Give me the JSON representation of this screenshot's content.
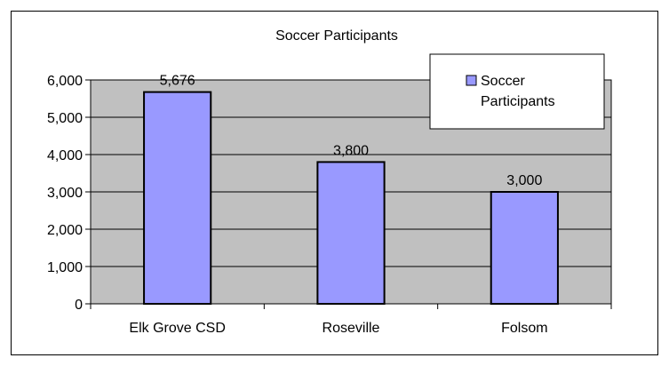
{
  "chart_data": {
    "type": "bar",
    "title": "Soccer Participants",
    "categories": [
      "Elk Grove CSD",
      "Roseville",
      "Folsom"
    ],
    "series": [
      {
        "name": "Soccer Participants",
        "values": [
          5676,
          3800,
          3000
        ]
      }
    ],
    "data_labels": [
      "5,676",
      "3,800",
      "3,000"
    ],
    "y_ticks": [
      "0",
      "1,000",
      "2,000",
      "3,000",
      "4,000",
      "5,000",
      "6,000"
    ],
    "y_tick_values": [
      0,
      1000,
      2000,
      3000,
      4000,
      5000,
      6000
    ],
    "ylim": [
      0,
      6000
    ],
    "legend": {
      "line1": "Soccer",
      "line2": "Participants",
      "position": "top-right"
    },
    "grid": true,
    "colors": {
      "bar": "#9999ff",
      "plot_bg": "#c0c0c0",
      "border": "#000000"
    }
  }
}
